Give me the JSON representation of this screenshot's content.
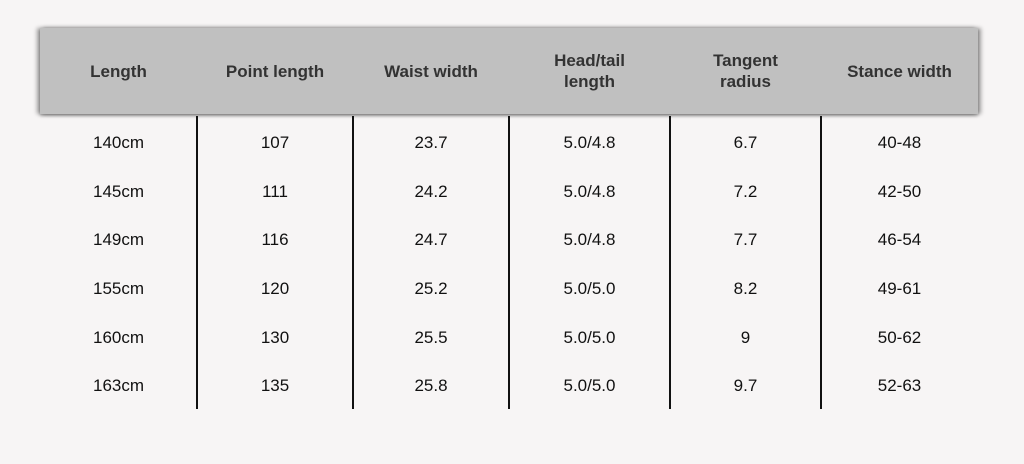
{
  "table": {
    "header": [
      "Length",
      "Point length",
      "Waist width",
      "Head/tail length",
      "Tangent radius",
      "Stance width"
    ],
    "rows": [
      [
        "140cm",
        "107",
        "23.7",
        "5.0/4.8",
        "6.7",
        "40-48"
      ],
      [
        "145cm",
        "111",
        "24.2",
        "5.0/4.8",
        "7.2",
        "42-50"
      ],
      [
        "149cm",
        "116",
        "24.7",
        "5.0/4.8",
        "7.7",
        "46-54"
      ],
      [
        "155cm",
        "120",
        "25.2",
        "5.0/5.0",
        "8.2",
        "49-61"
      ],
      [
        "160cm",
        "130",
        "25.5",
        "5.0/5.0",
        "9",
        "50-62"
      ],
      [
        "163cm",
        "135",
        "25.8",
        "5.0/5.0",
        "9.7",
        "52-63"
      ]
    ]
  }
}
